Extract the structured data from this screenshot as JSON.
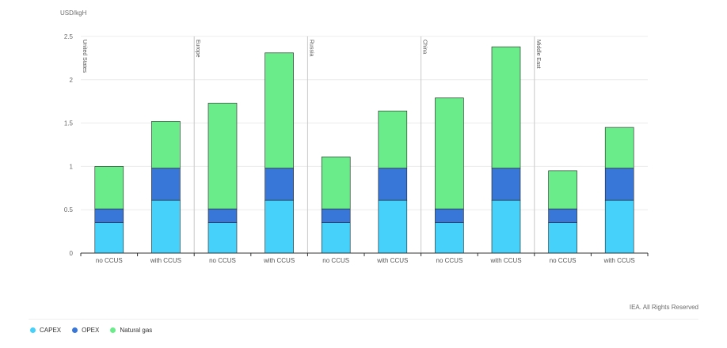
{
  "chart_data": {
    "type": "bar",
    "stacked": true,
    "y_unit_label": "USD/kgH",
    "ylim": [
      0,
      2.5
    ],
    "y_ticks": [
      "0",
      "0.5",
      "1",
      "1.5",
      "2",
      "2.5"
    ],
    "y_tick_values": [
      0,
      0.5,
      1,
      1.5,
      2,
      2.5
    ],
    "grid": true,
    "legend_position": "bottom-left",
    "groups": [
      "United States",
      "Europe",
      "Russia",
      "China",
      "Middle East"
    ],
    "categories": [
      "no CCUS",
      "with CCUS"
    ],
    "series": [
      {
        "name": "CAPEX",
        "color": "#45d1fa",
        "values": [
          [
            0.35,
            0.61
          ],
          [
            0.35,
            0.61
          ],
          [
            0.35,
            0.61
          ],
          [
            0.35,
            0.61
          ],
          [
            0.35,
            0.61
          ]
        ]
      },
      {
        "name": "OPEX",
        "color": "#3877d7",
        "values": [
          [
            0.16,
            0.37
          ],
          [
            0.16,
            0.37
          ],
          [
            0.16,
            0.37
          ],
          [
            0.16,
            0.37
          ],
          [
            0.16,
            0.37
          ]
        ]
      },
      {
        "name": "Natural gas",
        "color": "#6bec8b",
        "values": [
          [
            0.49,
            0.54
          ],
          [
            1.22,
            1.33
          ],
          [
            0.6,
            0.66
          ],
          [
            1.28,
            1.4
          ],
          [
            0.44,
            0.47
          ]
        ]
      }
    ]
  },
  "footer": {
    "credit": "IEA. All Rights Reserved"
  },
  "legend": {
    "items": [
      {
        "label": "CAPEX",
        "color": "#45d1fa"
      },
      {
        "label": "OPEX",
        "color": "#3877d7"
      },
      {
        "label": "Natural gas",
        "color": "#6bec8b"
      }
    ]
  }
}
